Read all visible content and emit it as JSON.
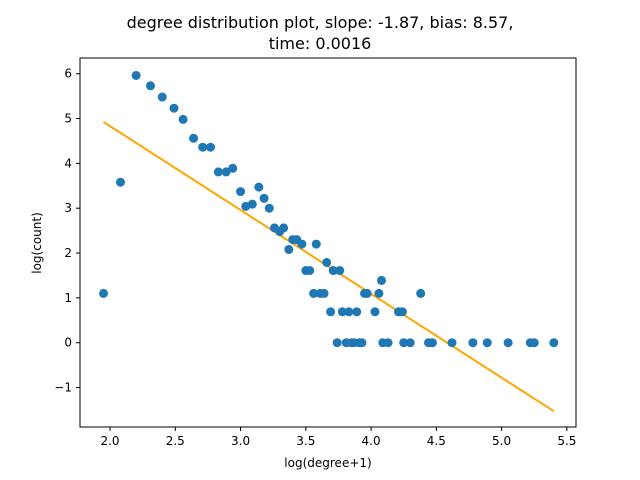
{
  "chart_data": {
    "type": "scatter",
    "title_line1": "degree distribution plot, slope: -1.87, bias: 8.57,",
    "title_line2": "time: 0.0016",
    "xlabel": "log(degree+1)",
    "ylabel": "log(count)",
    "xlim": [
      1.77,
      5.57
    ],
    "ylim": [
      -1.88,
      6.35
    ],
    "xticks": [
      2.0,
      2.5,
      3.0,
      3.5,
      4.0,
      4.5,
      5.0,
      5.5
    ],
    "xtick_labels": [
      "2.0",
      "2.5",
      "3.0",
      "3.5",
      "4.0",
      "4.5",
      "5.0",
      "5.5"
    ],
    "yticks": [
      -1,
      0,
      1,
      2,
      3,
      4,
      5,
      6
    ],
    "ytick_labels": [
      "−1",
      "0",
      "1",
      "2",
      "3",
      "4",
      "5",
      "6"
    ],
    "grid": false,
    "colors": {
      "points": "#1f77b4",
      "fit_line": "#ffa500"
    },
    "points": [
      [
        1.95,
        1.1
      ],
      [
        2.08,
        3.58
      ],
      [
        2.2,
        5.96
      ],
      [
        2.31,
        5.73
      ],
      [
        2.4,
        5.48
      ],
      [
        2.49,
        5.23
      ],
      [
        2.56,
        4.98
      ],
      [
        2.64,
        4.56
      ],
      [
        2.71,
        4.36
      ],
      [
        2.77,
        4.36
      ],
      [
        2.83,
        3.81
      ],
      [
        2.89,
        3.81
      ],
      [
        2.94,
        3.89
      ],
      [
        3.0,
        3.37
      ],
      [
        3.04,
        3.04
      ],
      [
        3.09,
        3.09
      ],
      [
        3.14,
        3.47
      ],
      [
        3.18,
        3.22
      ],
      [
        3.22,
        3.0
      ],
      [
        3.26,
        2.56
      ],
      [
        3.3,
        2.48
      ],
      [
        3.33,
        2.56
      ],
      [
        3.37,
        2.08
      ],
      [
        3.4,
        2.3
      ],
      [
        3.43,
        2.3
      ],
      [
        3.47,
        2.2
      ],
      [
        3.5,
        1.61
      ],
      [
        3.53,
        1.61
      ],
      [
        3.56,
        1.1
      ],
      [
        3.58,
        2.2
      ],
      [
        3.61,
        1.1
      ],
      [
        3.64,
        1.1
      ],
      [
        3.66,
        1.79
      ],
      [
        3.69,
        0.69
      ],
      [
        3.71,
        1.61
      ],
      [
        3.74,
        0.0
      ],
      [
        3.76,
        1.61
      ],
      [
        3.78,
        0.69
      ],
      [
        3.81,
        0.0
      ],
      [
        3.83,
        0.69
      ],
      [
        3.85,
        0.0
      ],
      [
        3.87,
        0.0
      ],
      [
        3.89,
        0.69
      ],
      [
        3.91,
        0.0
      ],
      [
        3.93,
        0.0
      ],
      [
        3.95,
        1.1
      ],
      [
        3.97,
        1.1
      ],
      [
        4.03,
        0.69
      ],
      [
        4.06,
        1.1
      ],
      [
        4.08,
        1.39
      ],
      [
        4.09,
        0.0
      ],
      [
        4.13,
        0.0
      ],
      [
        4.21,
        0.69
      ],
      [
        4.24,
        0.69
      ],
      [
        4.25,
        0.0
      ],
      [
        4.3,
        0.0
      ],
      [
        4.38,
        1.1
      ],
      [
        4.44,
        0.0
      ],
      [
        4.47,
        0.0
      ],
      [
        4.62,
        0.0
      ],
      [
        4.78,
        0.0
      ],
      [
        4.89,
        0.0
      ],
      [
        5.05,
        0.0
      ],
      [
        5.22,
        0.0
      ],
      [
        5.25,
        0.0
      ],
      [
        5.4,
        0.0
      ]
    ],
    "fit": {
      "slope": -1.87,
      "bias": 8.57,
      "x_range": [
        1.95,
        5.4
      ]
    }
  }
}
